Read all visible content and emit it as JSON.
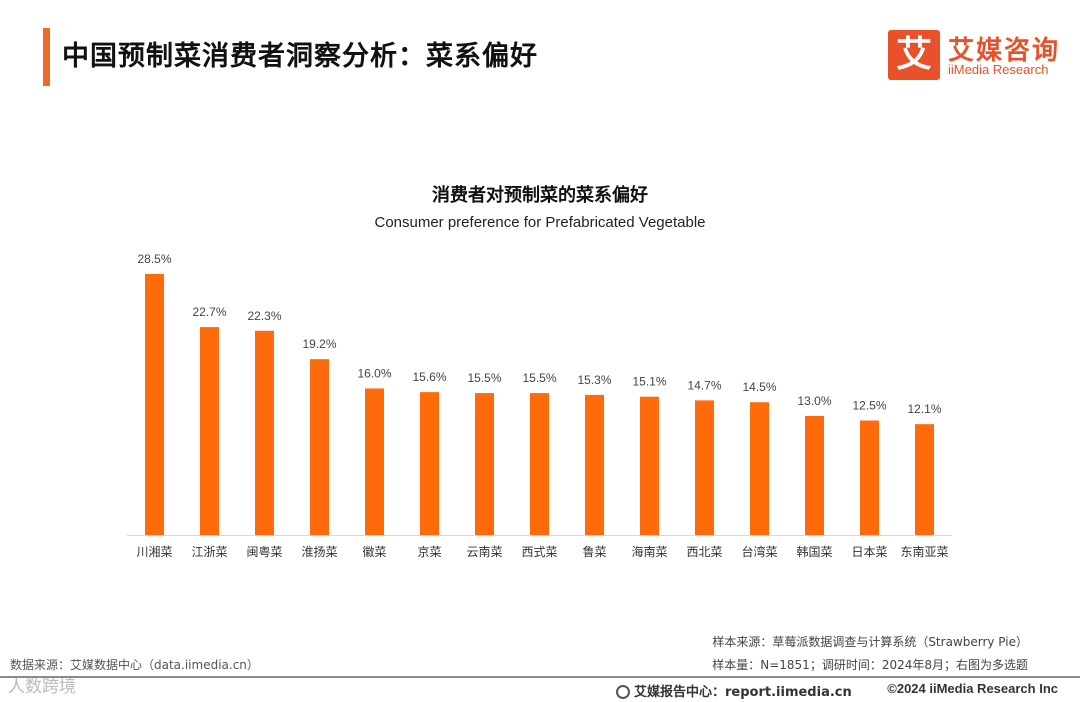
{
  "header": {
    "title": "中国预制菜消费者洞察分析：菜系偏好"
  },
  "logo": {
    "mark": "艾",
    "name_cn": "艾媒咨询",
    "name_en": "iiMedia Research"
  },
  "colors": {
    "accent": "#f06a22",
    "bar": "#ff6a0a"
  },
  "chart_data": {
    "type": "bar",
    "title": "消费者对预制菜的菜系偏好",
    "subtitle": "Consumer preference for Prefabricated Vegetable",
    "categories": [
      "川湘菜",
      "江浙菜",
      "闽粤菜",
      "淮扬菜",
      "徽菜",
      "京菜",
      "云南菜",
      "西式菜",
      "鲁菜",
      "海南菜",
      "西北菜",
      "台湾菜",
      "韩国菜",
      "日本菜",
      "东南亚菜"
    ],
    "values": [
      28.5,
      22.7,
      22.3,
      19.2,
      16.0,
      15.6,
      15.5,
      15.5,
      15.3,
      15.1,
      14.7,
      14.5,
      13.0,
      12.5,
      12.1
    ],
    "value_labels": [
      "28.5%",
      "22.7%",
      "22.3%",
      "19.2%",
      "16.0%",
      "15.6%",
      "15.5%",
      "15.5%",
      "15.3%",
      "15.1%",
      "14.7%",
      "14.5%",
      "13.0%",
      "12.5%",
      "12.1%"
    ],
    "ylim": [
      0,
      28.5
    ],
    "grid": false,
    "legend": "none"
  },
  "footer": {
    "source_left": "数据来源：艾媒数据中心（data.iimedia.cn）",
    "watermark": "人数跨境",
    "sample_source": "样本来源：草莓派数据调查与计算系统（Strawberry Pie）",
    "sample_size": "样本量：N=1851；调研时间：2024年8月；右图为多选题",
    "report_center": "艾媒报告中心：report.iimedia.cn",
    "copyright": "©2024  iiMedia Research Inc"
  }
}
